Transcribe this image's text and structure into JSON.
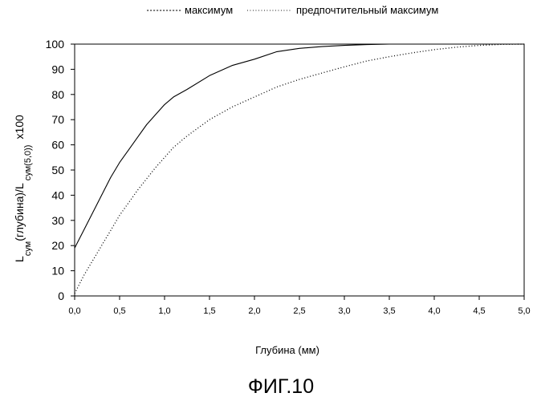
{
  "chart_data": {
    "type": "line",
    "title": "",
    "xlabel": "Глубина (мм)",
    "ylabel": {
      "l1": "L",
      "s1": "сум",
      "mid": "(глубина)/L",
      "s2": "сум(5,0))",
      "tail": "x100"
    },
    "xlim": [
      0,
      5
    ],
    "ylim": [
      0,
      100
    ],
    "x_ticks": [
      "0,0",
      "0,5",
      "1,0",
      "1,5",
      "2,0",
      "2,5",
      "3,0",
      "3,5",
      "4,0",
      "4,5",
      "5,0"
    ],
    "y_ticks": [
      "0",
      "10",
      "20",
      "30",
      "40",
      "50",
      "60",
      "70",
      "80",
      "90",
      "100"
    ],
    "grid": false,
    "legend_position": "top-right",
    "series": [
      {
        "name": "максимум",
        "line_style": "solid",
        "legend_marker": "dashed",
        "color": "#000000",
        "x": [
          0,
          0.1,
          0.2,
          0.3,
          0.4,
          0.5,
          0.6,
          0.7,
          0.8,
          0.9,
          1.0,
          1.1,
          1.25,
          1.5,
          1.75,
          2.0,
          2.25,
          2.5,
          2.75,
          3.0,
          3.25,
          3.5,
          3.75,
          4.0,
          4.5,
          5.0
        ],
        "y": [
          19,
          26,
          33,
          40,
          47,
          53,
          58,
          63,
          68,
          72,
          76,
          79,
          82,
          87.5,
          91.5,
          94,
          97,
          98.3,
          99,
          99.5,
          99.8,
          100,
          100,
          100,
          100,
          100
        ]
      },
      {
        "name": "предпочтительный максимум",
        "line_style": "dotted",
        "legend_marker": "dotted",
        "color": "#000000",
        "x": [
          0,
          0.1,
          0.2,
          0.3,
          0.4,
          0.5,
          0.6,
          0.7,
          0.8,
          0.9,
          1.0,
          1.1,
          1.25,
          1.5,
          1.75,
          2.0,
          2.25,
          2.5,
          2.75,
          3.0,
          3.25,
          3.5,
          3.75,
          4.0,
          4.25,
          4.5,
          4.75,
          5.0
        ],
        "y": [
          1,
          8,
          14,
          20,
          26,
          32,
          37,
          42,
          46.5,
          51,
          55,
          59,
          63.5,
          70,
          75,
          79,
          83,
          86,
          88.5,
          91,
          93.3,
          95,
          96.5,
          97.8,
          98.8,
          99.5,
          99.9,
          100
        ]
      }
    ]
  },
  "figure": {
    "caption": "ФИГ.10"
  }
}
